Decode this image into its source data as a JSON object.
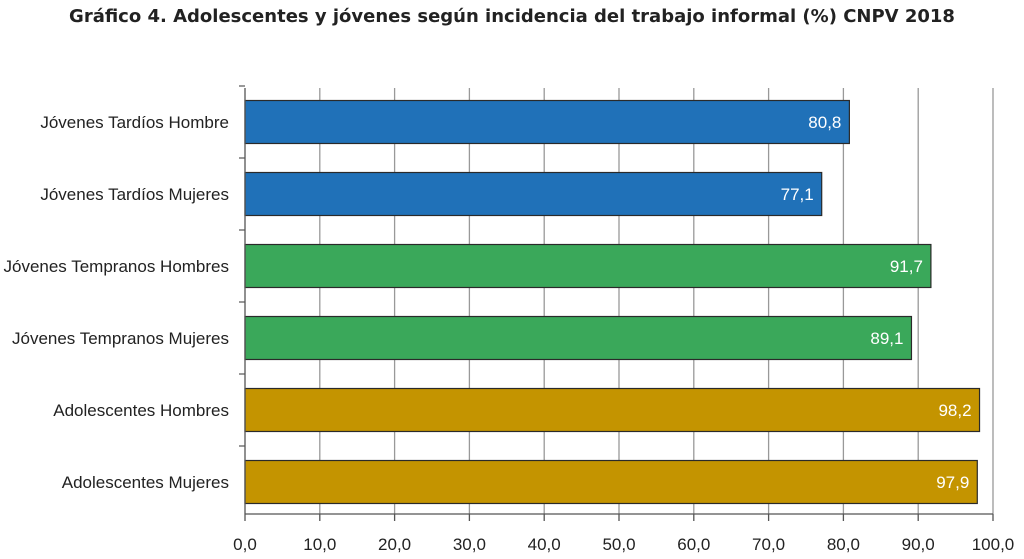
{
  "chart_data": {
    "type": "bar",
    "orientation": "horizontal",
    "title": "Gráfico 4. Adolescentes y jóvenes según incidencia del trabajo informal (%) CNPV 2018",
    "categories": [
      "Jóvenes Tardíos Hombre",
      "Jóvenes Tardíos Mujeres",
      "Jóvenes Tempranos Hombres",
      "Jóvenes Tempranos  Mujeres",
      "Adolescentes Hombres",
      "Adolescentes Mujeres"
    ],
    "values": [
      80.8,
      77.1,
      91.7,
      89.1,
      98.2,
      97.9
    ],
    "value_labels": [
      "80,8",
      "77,1",
      "91,7",
      "89,1",
      "98,2",
      "97,9"
    ],
    "bar_colors": [
      "#2071b8",
      "#2071b8",
      "#3aa85a",
      "#3aa85a",
      "#c49400",
      "#c49400"
    ],
    "xlim": [
      0,
      100
    ],
    "xticks": [
      0,
      10,
      20,
      30,
      40,
      50,
      60,
      70,
      80,
      90,
      100
    ],
    "xtick_labels": [
      "0,0",
      "10,0",
      "20,0",
      "30,0",
      "40,0",
      "50,0",
      "60,0",
      "70,0",
      "80,0",
      "90,0",
      "100,0"
    ],
    "grid": "vertical",
    "legend": "none",
    "gridline_color": "#999999",
    "bar_border_color": "#2a2a2a"
  }
}
